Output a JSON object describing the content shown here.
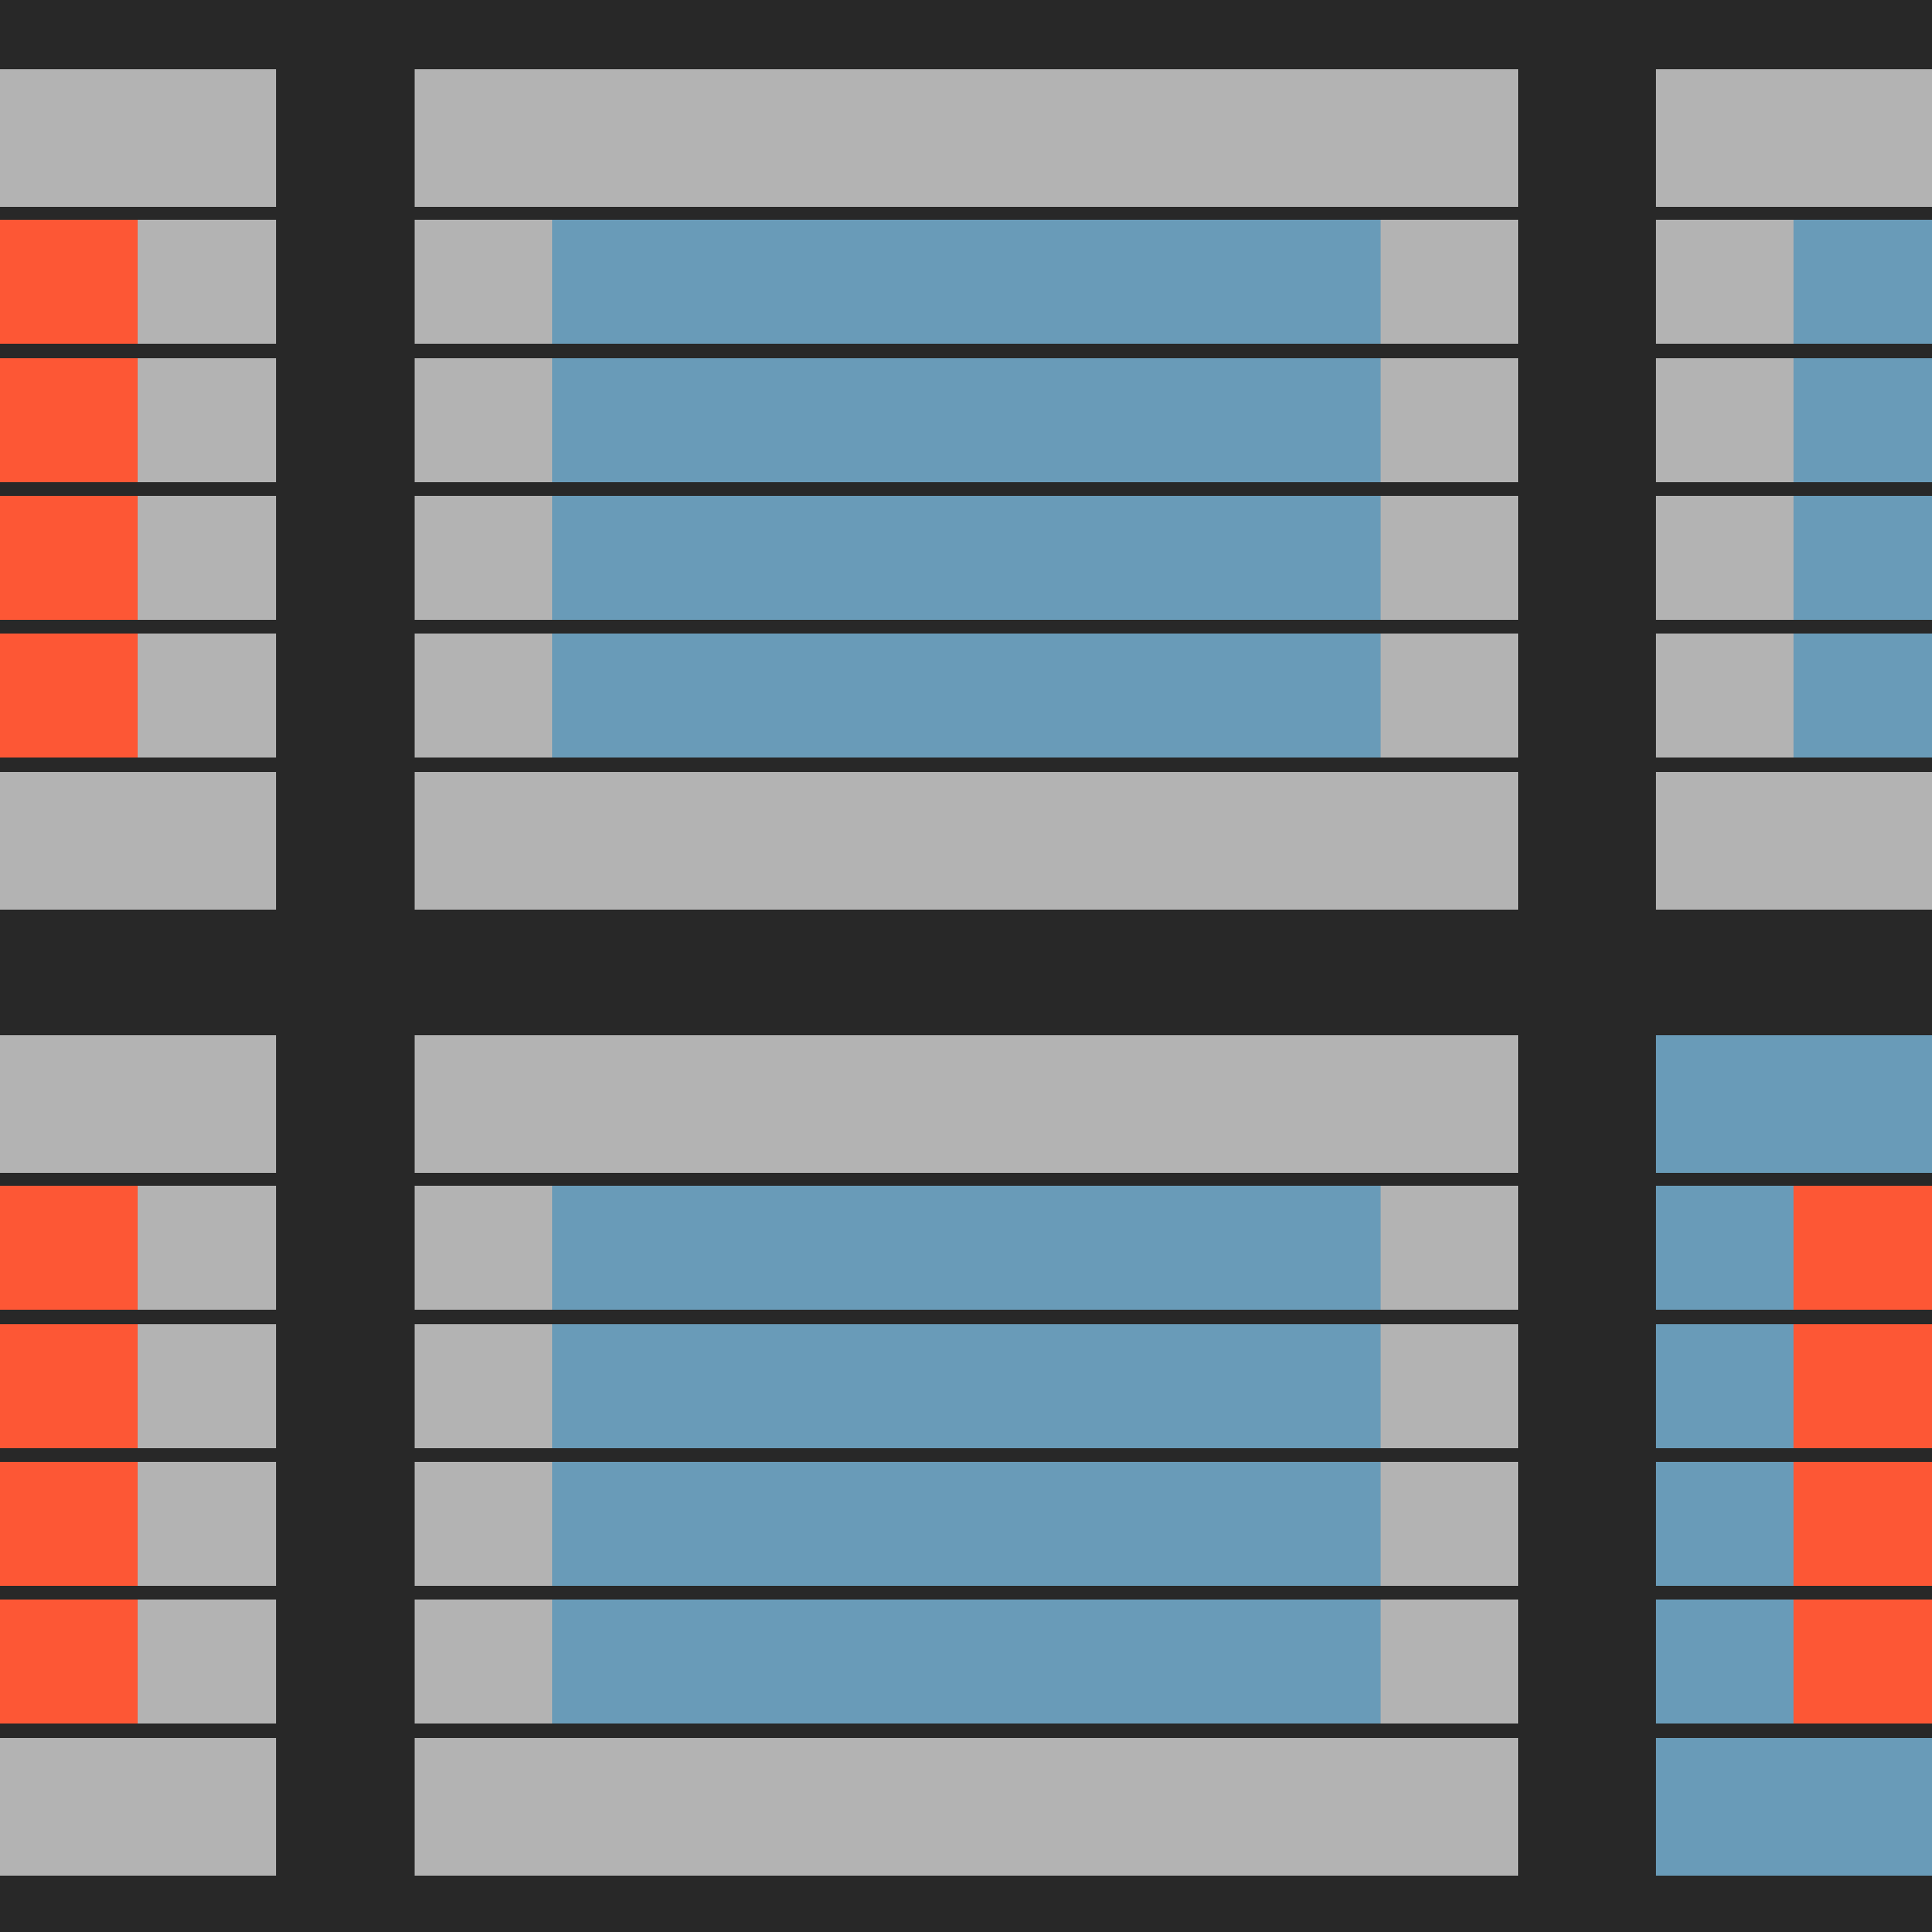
{
  "palette": {
    "background": "#282828",
    "gray": "#b3b3b3",
    "blue": "#699bb8",
    "orange": "#fd5735"
  },
  "panels": [
    {
      "name": "panel-top-left",
      "rows": [
        [
          "gray"
        ],
        [
          "orange",
          "gray"
        ],
        [
          "orange",
          "gray"
        ],
        [
          "orange",
          "gray"
        ],
        [
          "orange",
          "gray"
        ],
        [
          "gray"
        ]
      ]
    },
    {
      "name": "panel-top-center",
      "rows": [
        [
          "gray"
        ],
        [
          "gray",
          "blue",
          "gray"
        ],
        [
          "gray",
          "blue",
          "gray"
        ],
        [
          "gray",
          "blue",
          "gray"
        ],
        [
          "gray",
          "blue",
          "gray"
        ],
        [
          "gray"
        ]
      ]
    },
    {
      "name": "panel-top-right",
      "rows": [
        [
          "gray"
        ],
        [
          "gray",
          "blue"
        ],
        [
          "gray",
          "blue"
        ],
        [
          "gray",
          "blue"
        ],
        [
          "gray",
          "blue"
        ],
        [
          "gray"
        ]
      ]
    },
    {
      "name": "panel-bottom-left",
      "rows": [
        [
          "gray"
        ],
        [
          "orange",
          "gray"
        ],
        [
          "orange",
          "gray"
        ],
        [
          "orange",
          "gray"
        ],
        [
          "orange",
          "gray"
        ],
        [
          "gray"
        ]
      ]
    },
    {
      "name": "panel-bottom-center",
      "rows": [
        [
          "gray"
        ],
        [
          "gray",
          "blue",
          "gray"
        ],
        [
          "gray",
          "blue",
          "gray"
        ],
        [
          "gray",
          "blue",
          "gray"
        ],
        [
          "gray",
          "blue",
          "gray"
        ],
        [
          "gray"
        ]
      ]
    },
    {
      "name": "panel-bottom-right",
      "rows": [
        [
          "blue"
        ],
        [
          "blue",
          "orange"
        ],
        [
          "blue",
          "orange"
        ],
        [
          "blue",
          "orange"
        ],
        [
          "blue",
          "orange"
        ],
        [
          "blue"
        ]
      ]
    }
  ]
}
